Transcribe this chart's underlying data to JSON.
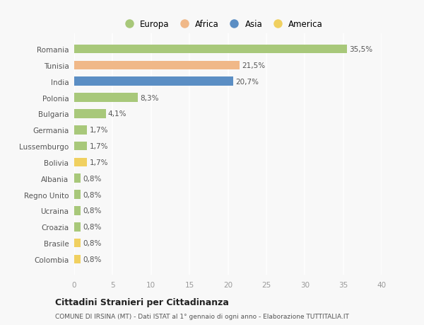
{
  "countries": [
    "Romania",
    "Tunisia",
    "India",
    "Polonia",
    "Bulgaria",
    "Germania",
    "Lussemburgo",
    "Bolivia",
    "Albania",
    "Regno Unito",
    "Ucraina",
    "Croazia",
    "Brasile",
    "Colombia"
  ],
  "values": [
    35.5,
    21.5,
    20.7,
    8.3,
    4.1,
    1.7,
    1.7,
    1.7,
    0.8,
    0.8,
    0.8,
    0.8,
    0.8,
    0.8
  ],
  "labels": [
    "35,5%",
    "21,5%",
    "20,7%",
    "8,3%",
    "4,1%",
    "1,7%",
    "1,7%",
    "1,7%",
    "0,8%",
    "0,8%",
    "0,8%",
    "0,8%",
    "0,8%",
    "0,8%"
  ],
  "continents": [
    "Europa",
    "Africa",
    "Asia",
    "Europa",
    "Europa",
    "Europa",
    "Europa",
    "America",
    "Europa",
    "Europa",
    "Europa",
    "Europa",
    "America",
    "America"
  ],
  "colors": {
    "Europa": "#a8c87a",
    "Africa": "#f0b888",
    "Asia": "#5b8ec4",
    "America": "#f0d060"
  },
  "xlim": [
    0,
    40
  ],
  "xticks": [
    0,
    5,
    10,
    15,
    20,
    25,
    30,
    35,
    40
  ],
  "title": "Cittadini Stranieri per Cittadinanza",
  "subtitle": "COMUNE DI IRSINA (MT) - Dati ISTAT al 1° gennaio di ogni anno - Elaborazione TUTTITALIA.IT",
  "bg_color": "#f8f8f8",
  "grid_color": "#ffffff",
  "bar_height": 0.55,
  "bar_alpha": 1.0,
  "label_fontsize": 7.5,
  "ytick_fontsize": 7.5,
  "xtick_fontsize": 7.5
}
